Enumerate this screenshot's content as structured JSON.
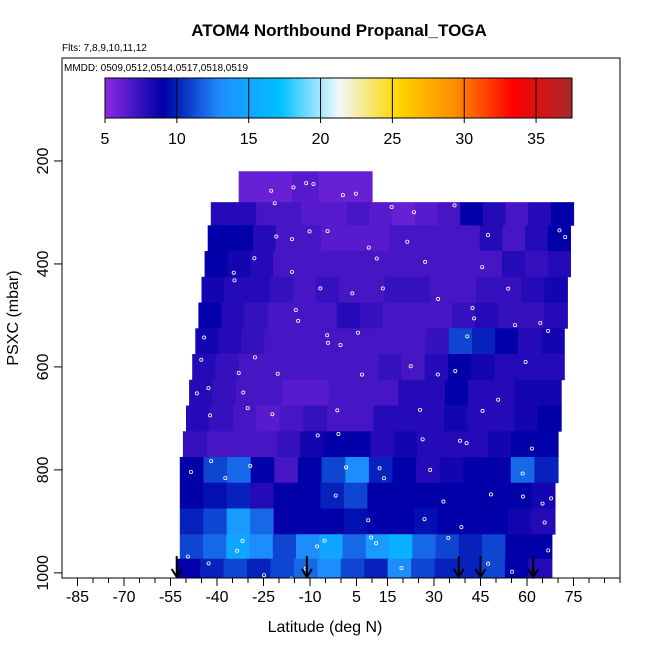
{
  "chart_data": {
    "type": "heatmap",
    "title": "ATOM4 Northbound Propanal_TOGA",
    "flights_label": "Flts: 7,8,9,10,11,12",
    "dates_label": "MMDD: 0509,0512,0514,0517,0518,0519",
    "xlabel": "Latitude (deg N)",
    "ylabel": "PSXC (mbar)",
    "xlim": [
      -90,
      90
    ],
    "ylim": [
      1010,
      0
    ],
    "x_ticks": [
      -85,
      -70,
      -55,
      -40,
      -25,
      -10,
      5,
      15,
      30,
      45,
      60,
      75
    ],
    "y_ticks": [
      200,
      400,
      600,
      800,
      1000
    ],
    "colorbar": {
      "min": 5,
      "max": 37.5,
      "ticks": [
        5,
        10,
        15,
        20,
        25,
        30,
        35
      ],
      "colors": [
        "#8A2BE2",
        "#0000A8",
        "#1E90FF",
        "#00BFFF",
        "#F0F8FF",
        "#FFD700",
        "#FF8C00",
        "#FF0000",
        "#A52A2A"
      ]
    },
    "arrow_latitudes": [
      -53,
      -11,
      38,
      45,
      62
    ],
    "levels": [
      {
        "p": 260,
        "lat_min": -33,
        "lat_max": 10,
        "values": [
          6,
          6,
          6.5,
          6,
          6
        ]
      },
      {
        "p": 300,
        "lat_min": -42,
        "lat_max": 75,
        "values": [
          8,
          8,
          7,
          7,
          6.5,
          6.5,
          7,
          6.5,
          6,
          6.5,
          7,
          9,
          8,
          7,
          8,
          9
        ]
      },
      {
        "p": 350,
        "lat_min": -43,
        "lat_max": 74,
        "values": [
          9,
          9,
          8,
          7,
          7,
          6.5,
          6.5,
          6.5,
          7,
          7,
          7,
          7,
          8,
          7,
          8,
          9
        ]
      },
      {
        "p": 400,
        "lat_min": -44,
        "lat_max": 74,
        "values": [
          9,
          8.5,
          8,
          7,
          7,
          7,
          7,
          7,
          7,
          7,
          7,
          7,
          7,
          8,
          7.5,
          8
        ]
      },
      {
        "p": 450,
        "lat_min": -45,
        "lat_max": 73,
        "values": [
          8.5,
          8,
          8,
          7.5,
          7,
          7.5,
          7,
          7,
          7.5,
          7.5,
          7,
          7,
          7.5,
          7.5,
          8,
          8.5
        ]
      },
      {
        "p": 500,
        "lat_min": -46,
        "lat_max": 73,
        "values": [
          9,
          8,
          7.5,
          7,
          7,
          7,
          8,
          7.5,
          7,
          7,
          7,
          7.5,
          8,
          7.5,
          7.5,
          8
        ]
      },
      {
        "p": 550,
        "lat_min": -47,
        "lat_max": 72,
        "values": [
          8.5,
          8,
          7.5,
          7,
          7,
          7,
          7,
          7,
          7,
          7,
          7.5,
          11,
          10,
          9,
          8,
          8.5
        ]
      },
      {
        "p": 600,
        "lat_min": -48,
        "lat_max": 72,
        "values": [
          8,
          7.5,
          7,
          7,
          7,
          7,
          7,
          7,
          7.5,
          7,
          8,
          9,
          8.5,
          8,
          8,
          8
        ]
      },
      {
        "p": 650,
        "lat_min": -49,
        "lat_max": 71,
        "values": [
          8,
          7.5,
          7,
          7,
          6.5,
          6.5,
          7,
          7,
          7,
          8,
          8,
          9,
          8,
          8,
          8.5,
          8.5
        ]
      },
      {
        "p": 700,
        "lat_min": -50,
        "lat_max": 71,
        "values": [
          8,
          7.5,
          7,
          6.5,
          7,
          7.5,
          7,
          7,
          8,
          8,
          8,
          8.5,
          8,
          8,
          8.5,
          9
        ]
      },
      {
        "p": 750,
        "lat_min": -51,
        "lat_max": 70,
        "values": [
          7.5,
          7,
          7,
          7,
          7.5,
          8.5,
          9,
          9,
          8,
          8.5,
          8,
          8,
          8,
          8.5,
          9,
          9
        ]
      },
      {
        "p": 800,
        "lat_min": -52,
        "lat_max": 70,
        "values": [
          9,
          11,
          12,
          9,
          7,
          9,
          11,
          13,
          10,
          9,
          8,
          8.5,
          9,
          9,
          12,
          10
        ]
      },
      {
        "p": 850,
        "lat_min": -52,
        "lat_max": 69,
        "values": [
          9,
          9.5,
          10,
          8,
          9,
          9,
          10,
          11,
          9,
          9,
          9,
          9,
          9,
          9,
          9,
          8.5
        ]
      },
      {
        "p": 900,
        "lat_min": -52,
        "lat_max": 69,
        "values": [
          10,
          11,
          14,
          12,
          9,
          9,
          9,
          9.5,
          9,
          9,
          9.5,
          9,
          9,
          9,
          8.5,
          8
        ]
      },
      {
        "p": 950,
        "lat_min": -52,
        "lat_max": 68,
        "values": [
          11,
          12,
          15,
          13,
          11,
          13,
          15,
          12,
          14,
          16,
          12,
          11,
          10,
          11,
          9,
          9
        ]
      },
      {
        "p": 995,
        "lat_min": -53,
        "lat_max": 68,
        "values": [
          9,
          10,
          11,
          10,
          11,
          12,
          13,
          11,
          10,
          13,
          11,
          10,
          10,
          11,
          9,
          8
        ]
      }
    ]
  }
}
